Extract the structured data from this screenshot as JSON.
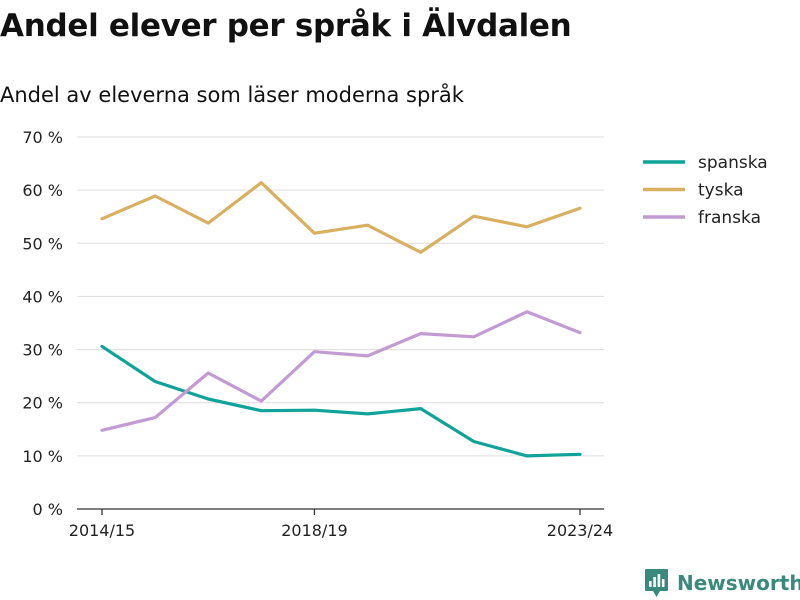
{
  "title": "Andel elever per språk i Älvdalen",
  "subtitle": "Andel av eleverna som läser moderna språk",
  "brand": "Newsworthy",
  "chart_data": {
    "type": "line",
    "title": "Andel elever per språk i Älvdalen",
    "subtitle": "Andel av eleverna som läser moderna språk",
    "xlabel": "",
    "ylabel": "",
    "x": [
      "2014/15",
      "2015/16",
      "2016/17",
      "2017/18",
      "2018/19",
      "2019/20",
      "2020/21",
      "2021/22",
      "2022/23",
      "2023/24"
    ],
    "x_tick_labels": [
      "2014/15",
      "2018/19",
      "2023/24"
    ],
    "y_tick_labels": [
      "0 %",
      "10 %",
      "20 %",
      "30 %",
      "40 %",
      "50 %",
      "60 %",
      "70 %"
    ],
    "ylim": [
      0,
      70
    ],
    "y_ticks": [
      0,
      10,
      20,
      30,
      40,
      50,
      60,
      70
    ],
    "grid": true,
    "legend_position": "right",
    "series": [
      {
        "name": "spanska",
        "color": "#0fa39a",
        "values": [
          30.6,
          24.0,
          20.7,
          18.5,
          18.6,
          17.9,
          18.9,
          12.7,
          10.0,
          10.3
        ]
      },
      {
        "name": "tyska",
        "color": "#d8b060",
        "values": [
          54.6,
          58.9,
          53.8,
          61.4,
          51.9,
          53.4,
          48.3,
          55.1,
          53.1,
          56.6
        ]
      },
      {
        "name": "franska",
        "color": "#c39bd3",
        "values": [
          14.8,
          17.2,
          25.6,
          20.3,
          29.6,
          28.8,
          33.0,
          32.4,
          37.1,
          33.2
        ]
      }
    ]
  }
}
